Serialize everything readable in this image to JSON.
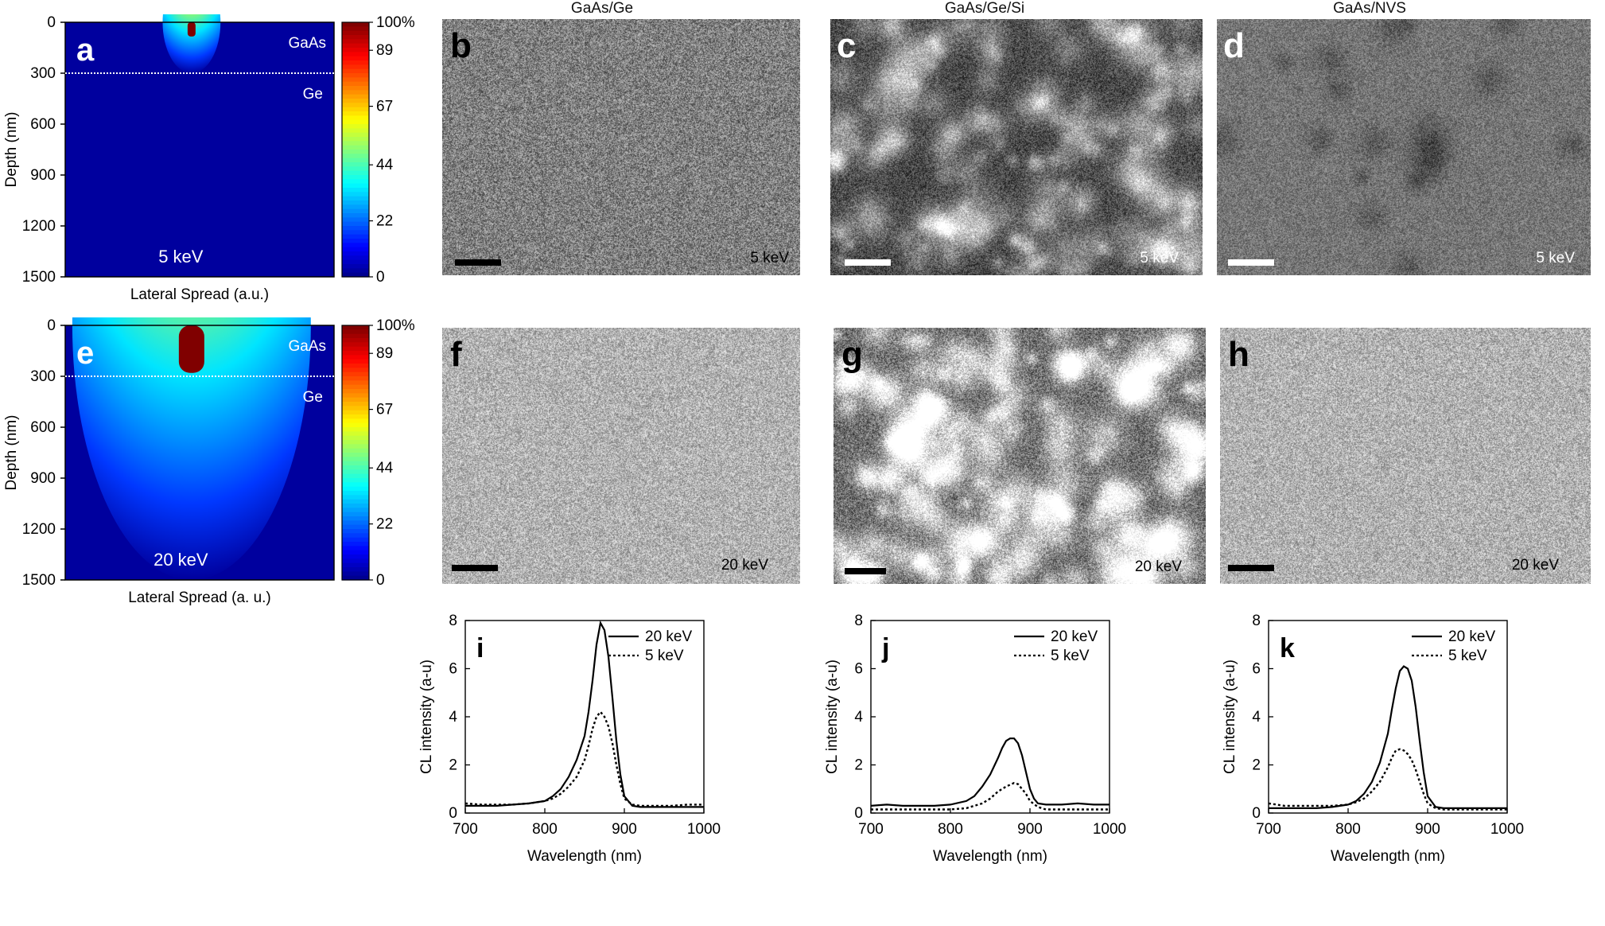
{
  "figure": {
    "column_titles": [
      "GaAs/Ge",
      "GaAs/Ge/Si",
      "GaAs/NVS"
    ],
    "panel_letters": [
      "a",
      "b",
      "c",
      "d",
      "e",
      "f",
      "g",
      "h",
      "i",
      "j",
      "k"
    ],
    "colorbar_ticks": [
      "100%",
      "89",
      "67",
      "44",
      "22",
      "0"
    ],
    "sim_panels": [
      {
        "letter": "a",
        "energy_label": "5 keV",
        "layer_top": "GaAs",
        "layer_bottom": "Ge",
        "ylabel": "Depth (nm)",
        "xlabel": "Lateral Spread (a.u.)",
        "yticks": [
          "0",
          "300",
          "600",
          "900",
          "1200",
          "1500"
        ]
      },
      {
        "letter": "e",
        "energy_label": "20 keV",
        "layer_top": "GaAs",
        "layer_bottom": "Ge",
        "ylabel": "Depth (nm)",
        "xlabel": "Lateral Spread (a. u.)",
        "yticks": [
          "0",
          "300",
          "600",
          "900",
          "1200",
          "1500"
        ]
      }
    ],
    "sem_panels": [
      {
        "letter": "b",
        "energy": "5 keV",
        "tone": "medium",
        "scalebar": "black"
      },
      {
        "letter": "c",
        "energy": "5 keV",
        "tone": "dark-mottled",
        "scalebar": "white"
      },
      {
        "letter": "d",
        "energy": "5 keV",
        "tone": "gray-blotchy",
        "scalebar": "white"
      },
      {
        "letter": "f",
        "energy": "20 keV",
        "tone": "light",
        "scalebar": "black"
      },
      {
        "letter": "g",
        "energy": "20 keV",
        "tone": "strong-mottled",
        "scalebar": "black"
      },
      {
        "letter": "h",
        "energy": "20 keV",
        "tone": "light",
        "scalebar": "black"
      }
    ],
    "colors": {
      "ink": "#000000",
      "background": "#ffffff"
    }
  },
  "chart_data": [
    {
      "type": "heatmap",
      "panel": "a",
      "title": "5 keV",
      "ylabel": "Depth (nm)",
      "xlabel": "Lateral Spread (a.u.)",
      "ylim": [
        1500,
        0
      ],
      "interface_depth_nm": 300,
      "colorbar": {
        "min": 0,
        "max": 100,
        "ticks": [
          0,
          22,
          44,
          67,
          89,
          100
        ],
        "unit": "%"
      },
      "peak_depth_nm": 60,
      "max_penetration_nm": 300
    },
    {
      "type": "heatmap",
      "panel": "e",
      "title": "20 keV",
      "ylabel": "Depth (nm)",
      "xlabel": "Lateral Spread (a. u.)",
      "ylim": [
        1500,
        0
      ],
      "interface_depth_nm": 300,
      "colorbar": {
        "min": 0,
        "max": 100,
        "ticks": [
          0,
          22,
          44,
          67,
          89,
          100
        ],
        "unit": "%"
      },
      "peak_depth_nm": 200,
      "max_penetration_nm": 1500
    },
    {
      "type": "line",
      "panel": "i",
      "xlabel": "Wavelength (nm)",
      "ylabel": "CL intensity (a-u)",
      "xlim": [
        700,
        1000
      ],
      "ylim": [
        0,
        8
      ],
      "xticks": [
        700,
        800,
        900,
        1000
      ],
      "yticks": [
        0,
        2,
        4,
        6,
        8
      ],
      "legend": "top-right",
      "series": [
        {
          "name": "20 keV",
          "style": "solid",
          "x": [
            700,
            720,
            740,
            760,
            780,
            800,
            810,
            820,
            830,
            840,
            850,
            855,
            860,
            865,
            870,
            875,
            880,
            885,
            890,
            895,
            900,
            910,
            920,
            940,
            960,
            980,
            1000
          ],
          "y": [
            0.3,
            0.3,
            0.3,
            0.35,
            0.4,
            0.5,
            0.7,
            1.0,
            1.5,
            2.2,
            3.2,
            4.2,
            5.5,
            7.0,
            7.9,
            7.6,
            6.5,
            4.8,
            3.0,
            1.6,
            0.7,
            0.3,
            0.25,
            0.25,
            0.25,
            0.25,
            0.25
          ]
        },
        {
          "name": "5 keV",
          "style": "dotted",
          "x": [
            700,
            720,
            740,
            760,
            780,
            800,
            810,
            820,
            830,
            840,
            850,
            855,
            860,
            865,
            870,
            875,
            880,
            885,
            890,
            895,
            900,
            910,
            920,
            940,
            960,
            980,
            1000
          ],
          "y": [
            0.4,
            0.35,
            0.35,
            0.35,
            0.4,
            0.5,
            0.6,
            0.8,
            1.1,
            1.5,
            2.2,
            2.8,
            3.5,
            4.0,
            4.2,
            4.0,
            3.6,
            2.9,
            2.0,
            1.2,
            0.6,
            0.35,
            0.3,
            0.3,
            0.3,
            0.35,
            0.35
          ]
        }
      ]
    },
    {
      "type": "line",
      "panel": "j",
      "xlabel": "Wavelength (nm)",
      "ylabel": "CL intensity (a-u)",
      "xlim": [
        700,
        1000
      ],
      "ylim": [
        0,
        8
      ],
      "xticks": [
        700,
        800,
        900,
        1000
      ],
      "yticks": [
        0,
        2,
        4,
        6,
        8
      ],
      "legend": "top-right",
      "series": [
        {
          "name": "20 keV",
          "style": "solid",
          "x": [
            700,
            720,
            740,
            760,
            780,
            800,
            820,
            830,
            840,
            850,
            860,
            865,
            870,
            875,
            880,
            885,
            890,
            895,
            900,
            905,
            910,
            920,
            940,
            960,
            980,
            1000
          ],
          "y": [
            0.3,
            0.35,
            0.3,
            0.3,
            0.3,
            0.35,
            0.5,
            0.7,
            1.1,
            1.6,
            2.3,
            2.7,
            3.0,
            3.1,
            3.1,
            2.9,
            2.4,
            1.7,
            1.0,
            0.6,
            0.4,
            0.35,
            0.35,
            0.4,
            0.35,
            0.35
          ]
        },
        {
          "name": "5 keV",
          "style": "dotted",
          "x": [
            700,
            720,
            740,
            760,
            780,
            800,
            820,
            840,
            850,
            860,
            870,
            880,
            885,
            890,
            895,
            900,
            910,
            920,
            940,
            960,
            980,
            1000
          ],
          "y": [
            0.15,
            0.15,
            0.15,
            0.15,
            0.15,
            0.15,
            0.2,
            0.4,
            0.6,
            0.9,
            1.1,
            1.25,
            1.2,
            1.0,
            0.8,
            0.5,
            0.25,
            0.15,
            0.15,
            0.15,
            0.15,
            0.15
          ]
        }
      ]
    },
    {
      "type": "line",
      "panel": "k",
      "xlabel": "Wavelength (nm)",
      "ylabel": "CL intensity (a-u)",
      "xlim": [
        700,
        1000
      ],
      "ylim": [
        0,
        8
      ],
      "xticks": [
        700,
        800,
        900,
        1000
      ],
      "yticks": [
        0,
        2,
        4,
        6,
        8
      ],
      "legend": "top-right",
      "series": [
        {
          "name": "20 keV",
          "style": "solid",
          "x": [
            700,
            720,
            740,
            760,
            780,
            800,
            810,
            820,
            830,
            840,
            850,
            855,
            860,
            865,
            870,
            875,
            880,
            885,
            890,
            895,
            900,
            910,
            920,
            940,
            960,
            980,
            1000
          ],
          "y": [
            0.2,
            0.2,
            0.2,
            0.2,
            0.25,
            0.35,
            0.5,
            0.8,
            1.3,
            2.1,
            3.3,
            4.3,
            5.2,
            5.9,
            6.1,
            6.0,
            5.5,
            4.4,
            3.0,
            1.7,
            0.7,
            0.25,
            0.2,
            0.2,
            0.2,
            0.2,
            0.2
          ]
        },
        {
          "name": "5 keV",
          "style": "dotted",
          "x": [
            700,
            720,
            740,
            760,
            780,
            800,
            810,
            820,
            830,
            840,
            850,
            855,
            860,
            865,
            870,
            875,
            880,
            885,
            890,
            895,
            900,
            910,
            920,
            940,
            960,
            980,
            1000
          ],
          "y": [
            0.4,
            0.3,
            0.3,
            0.3,
            0.3,
            0.35,
            0.45,
            0.6,
            0.9,
            1.3,
            1.9,
            2.3,
            2.6,
            2.65,
            2.6,
            2.45,
            2.2,
            1.8,
            1.3,
            0.8,
            0.4,
            0.2,
            0.15,
            0.15,
            0.15,
            0.15,
            0.15
          ]
        }
      ]
    }
  ]
}
